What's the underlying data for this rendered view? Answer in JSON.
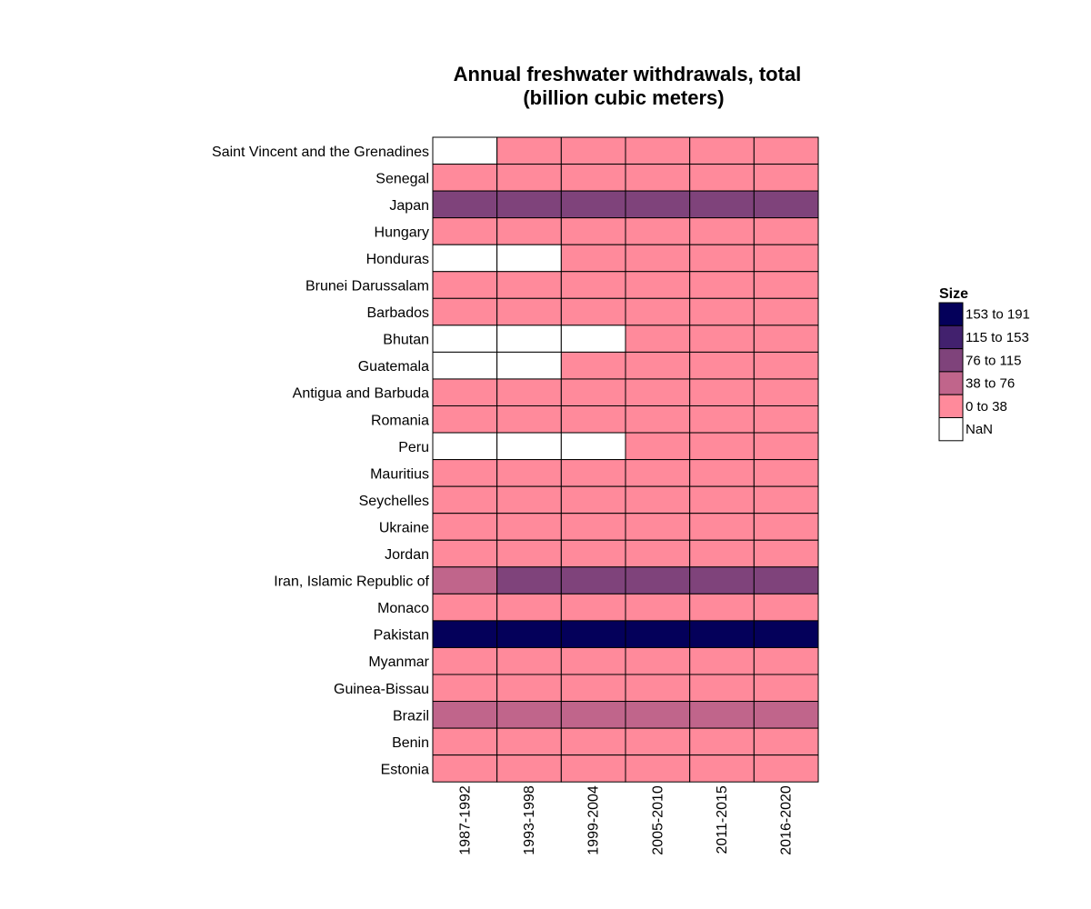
{
  "chart_data": {
    "type": "heatmap",
    "title_lines": [
      "Annual freshwater withdrawals, total",
      "(billion cubic meters)"
    ],
    "xlabel": "",
    "ylabel": "",
    "columns": [
      "1987-1992",
      "1993-1998",
      "1999-2004",
      "2005-2010",
      "2011-2015",
      "2016-2020"
    ],
    "rows": [
      "Saint Vincent and the Grenadines",
      "Senegal",
      "Japan",
      "Hungary",
      "Honduras",
      "Brunei Darussalam",
      "Barbados",
      "Bhutan",
      "Guatemala",
      "Antigua and Barbuda",
      "Romania",
      "Peru",
      "Mauritius",
      "Seychelles",
      "Ukraine",
      "Jordan",
      "Iran, Islamic Republic of",
      "Monaco",
      "Pakistan",
      "Myanmar",
      "Guinea-Bissau",
      "Brazil",
      "Benin",
      "Estonia"
    ],
    "bins": [
      [
        null,
        0,
        0,
        0,
        0,
        0
      ],
      [
        0,
        0,
        0,
        0,
        0,
        0
      ],
      [
        2,
        2,
        2,
        2,
        2,
        2
      ],
      [
        0,
        0,
        0,
        0,
        0,
        0
      ],
      [
        null,
        null,
        0,
        0,
        0,
        0
      ],
      [
        0,
        0,
        0,
        0,
        0,
        0
      ],
      [
        0,
        0,
        0,
        0,
        0,
        0
      ],
      [
        null,
        null,
        null,
        0,
        0,
        0
      ],
      [
        null,
        null,
        0,
        0,
        0,
        0
      ],
      [
        0,
        0,
        0,
        0,
        0,
        0
      ],
      [
        0,
        0,
        0,
        0,
        0,
        0
      ],
      [
        null,
        null,
        null,
        0,
        0,
        0
      ],
      [
        0,
        0,
        0,
        0,
        0,
        0
      ],
      [
        0,
        0,
        0,
        0,
        0,
        0
      ],
      [
        0,
        0,
        0,
        0,
        0,
        0
      ],
      [
        0,
        0,
        0,
        0,
        0,
        0
      ],
      [
        1,
        2,
        2,
        2,
        2,
        2
      ],
      [
        0,
        0,
        0,
        0,
        0,
        0
      ],
      [
        4,
        4,
        4,
        4,
        4,
        4
      ],
      [
        0,
        0,
        0,
        0,
        0,
        0
      ],
      [
        0,
        0,
        0,
        0,
        0,
        0
      ],
      [
        1,
        1,
        1,
        1,
        1,
        1
      ],
      [
        0,
        0,
        0,
        0,
        0,
        0
      ],
      [
        0,
        0,
        0,
        0,
        0,
        0
      ]
    ],
    "legend": {
      "title": "Size",
      "placement": "right",
      "entries": [
        {
          "label": "153 to 191",
          "color": "#04005a"
        },
        {
          "label": "115 to 153",
          "color": "#42216e"
        },
        {
          "label": "76 to 115",
          "color": "#7f437b"
        },
        {
          "label": "38 to 76",
          "color": "#c0658b"
        },
        {
          "label": "0 to 38",
          "color": "#ff8a9b"
        },
        {
          "label": "NaN",
          "color": "#ffffff"
        }
      ]
    },
    "bin_colors": [
      "#ff8a9b",
      "#c0658b",
      "#7f437b",
      "#42216e",
      "#04005a"
    ],
    "nan_color": "#ffffff"
  }
}
